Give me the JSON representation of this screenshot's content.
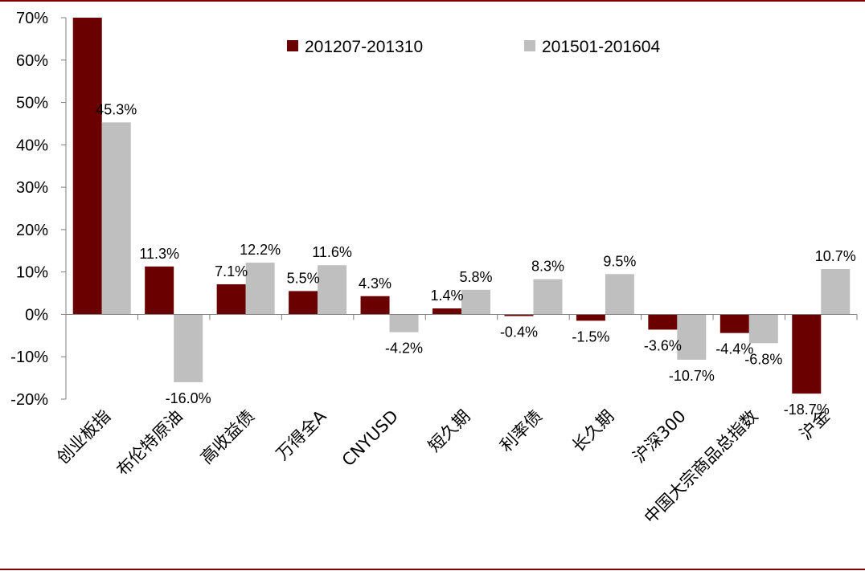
{
  "chart_data": {
    "type": "bar",
    "categories": [
      "创业板指",
      "布伦特原油",
      "高收益债",
      "万得全A",
      "CNYUSD",
      "短久期",
      "利率债",
      "长久期",
      "沪深300",
      "中国大宗商品总指数",
      "沪金"
    ],
    "series": [
      {
        "name": "201207-201310",
        "color": "#6b0000",
        "values": [
          70.0,
          11.3,
          7.1,
          5.5,
          4.3,
          1.4,
          -0.4,
          -1.5,
          -3.6,
          -4.4,
          -18.7
        ],
        "labels": [
          "",
          "11.3%",
          "7.1%",
          "5.5%",
          "4.3%",
          "1.4%",
          "-0.4%",
          "-1.5%",
          "-3.6%",
          "-4.4%",
          "-18.7%"
        ]
      },
      {
        "name": "201501-201604",
        "color": "#bfbfbf",
        "values": [
          45.3,
          -16.0,
          12.2,
          11.6,
          -4.2,
          5.8,
          8.3,
          9.5,
          -10.7,
          -6.8,
          10.7
        ],
        "labels": [
          "45.3%",
          "-16.0%",
          "12.2%",
          "11.6%",
          "-4.2%",
          "5.8%",
          "8.3%",
          "9.5%",
          "-10.7%",
          "-6.8%",
          "10.7%"
        ]
      }
    ],
    "y_ticks": [
      "70%",
      "60%",
      "50%",
      "40%",
      "30%",
      "20%",
      "10%",
      "0%",
      "-10%",
      "-20%"
    ],
    "ylim": [
      -20,
      70
    ],
    "grid": false,
    "legend_position": "top-center",
    "title": "",
    "xlabel": "",
    "ylabel": ""
  }
}
